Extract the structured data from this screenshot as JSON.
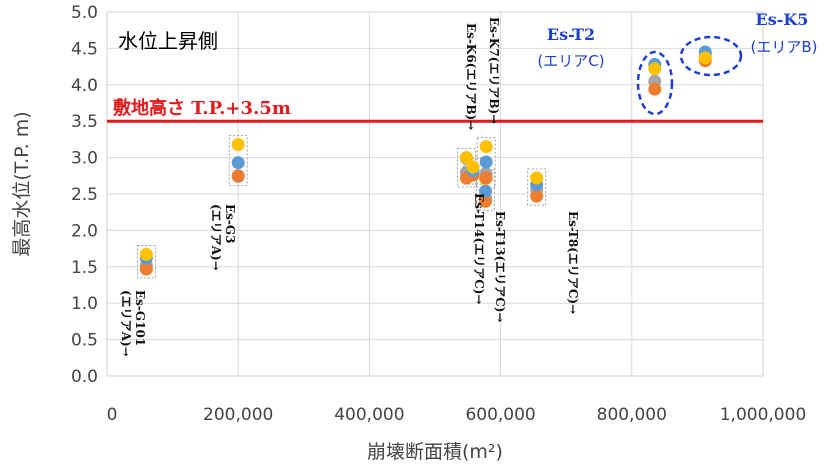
{
  "chart_data": {
    "type": "scatter",
    "title": "水位上昇側",
    "xlabel": "崩壊断面積(m²)",
    "ylabel": "最高水位(T.P. m)",
    "xlim": [
      0,
      1000000
    ],
    "ylim": [
      0,
      5.0
    ],
    "x_ticks": [
      "0",
      "200,000",
      "400,000",
      "600,000",
      "800,000",
      "1,000,000"
    ],
    "y_ticks": [
      "0.0",
      "0.5",
      "1.0",
      "1.5",
      "2.0",
      "2.5",
      "3.0",
      "3.5",
      "4.0",
      "4.5",
      "5.0"
    ],
    "grid": true,
    "reference_line": {
      "y": 3.5,
      "label": "敷地高さ T.P.+3.5m",
      "color": "#e31a1c"
    },
    "colors": [
      "#5b9bd5",
      "#ed7d31",
      "#a5a5a5",
      "#ffc000"
    ],
    "groups": [
      {
        "label": "Es-G101\n(エリアA)→",
        "x": 60000,
        "y": [
          1.62,
          1.47,
          1.52,
          1.67
        ]
      },
      {
        "label": "Es-G3\n(エリアA)→",
        "x": 200000,
        "y": [
          2.93,
          2.75,
          2.74,
          3.18
        ]
      },
      {
        "label": "Es-T14(エリアC)→",
        "x": 548000,
        "y": [
          2.99,
          2.72,
          2.8,
          3.0
        ]
      },
      {
        "label": "Es-K6(エリアB)→",
        "x": 558000,
        "y": [
          2.82,
          2.76,
          2.78,
          2.87
        ]
      },
      {
        "label": "Es-T13(エリアC)→",
        "x": 577000,
        "y": [
          2.54,
          2.4,
          2.45,
          2.71
        ]
      },
      {
        "label": "Es-K7(エリアB)→",
        "x": 578000,
        "y": [
          2.94,
          2.72,
          2.78,
          3.15
        ]
      },
      {
        "label": "Es-T8(エリアC)→",
        "x": 655000,
        "y": [
          2.63,
          2.47,
          2.56,
          2.72
        ]
      },
      {
        "label": "Es-T2",
        "x": 835000,
        "y": [
          4.28,
          3.94,
          4.05,
          4.22
        ]
      },
      {
        "label": "Es-K5",
        "x": 912000,
        "y": [
          4.45,
          4.33,
          4.42,
          4.37
        ]
      }
    ],
    "area_callouts": [
      {
        "name": "Es-T2",
        "area": "(エリアC)"
      },
      {
        "name": "Es-K5",
        "area": "(エリアB)"
      }
    ]
  }
}
